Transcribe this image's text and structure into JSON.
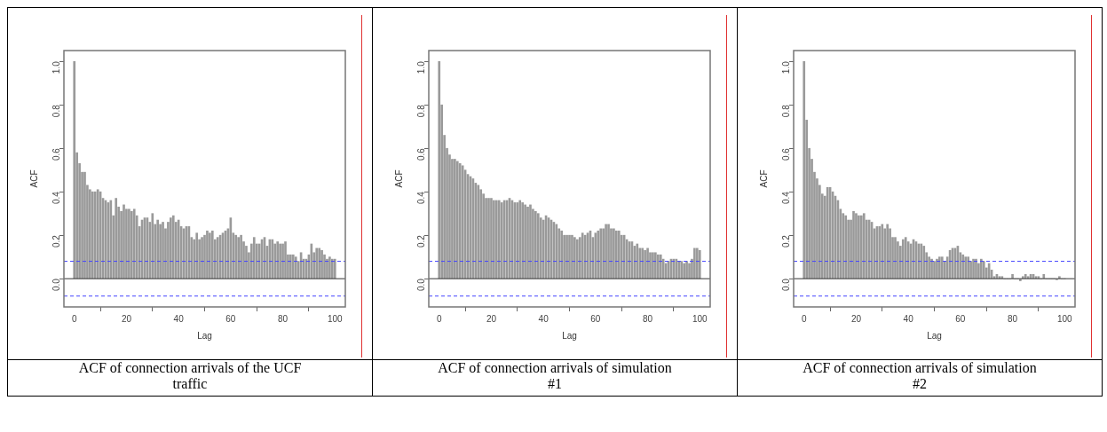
{
  "chart_data": [
    {
      "type": "bar",
      "title": "ACF of connection arrivals of the UCF traffic",
      "xlabel": "Lag",
      "ylabel": "ACF",
      "color": "#9a9a9a",
      "x": [
        0,
        1,
        2,
        3,
        4,
        5,
        6,
        7,
        8,
        9,
        10,
        11,
        12,
        13,
        14,
        15,
        16,
        17,
        18,
        19,
        20,
        21,
        22,
        23,
        24,
        25,
        26,
        27,
        28,
        29,
        30,
        31,
        32,
        33,
        34,
        35,
        36,
        37,
        38,
        39,
        40,
        41,
        42,
        43,
        44,
        45,
        46,
        47,
        48,
        49,
        50,
        51,
        52,
        53,
        54,
        55,
        56,
        57,
        58,
        59,
        60,
        61,
        62,
        63,
        64,
        65,
        66,
        67,
        68,
        69,
        70,
        71,
        72,
        73,
        74,
        75,
        76,
        77,
        78,
        79,
        80,
        81,
        82,
        83,
        84,
        85,
        86,
        87,
        88,
        89,
        90,
        91,
        92,
        93,
        94,
        95,
        96,
        97,
        98,
        99,
        100
      ],
      "values": [
        1.0,
        0.58,
        0.53,
        0.49,
        0.49,
        0.43,
        0.41,
        0.4,
        0.4,
        0.41,
        0.4,
        0.37,
        0.36,
        0.35,
        0.36,
        0.29,
        0.37,
        0.33,
        0.31,
        0.34,
        0.32,
        0.32,
        0.31,
        0.32,
        0.29,
        0.24,
        0.27,
        0.28,
        0.28,
        0.26,
        0.3,
        0.25,
        0.27,
        0.25,
        0.26,
        0.23,
        0.26,
        0.28,
        0.29,
        0.26,
        0.27,
        0.24,
        0.23,
        0.24,
        0.24,
        0.19,
        0.18,
        0.21,
        0.18,
        0.19,
        0.2,
        0.22,
        0.21,
        0.22,
        0.18,
        0.19,
        0.2,
        0.21,
        0.22,
        0.23,
        0.28,
        0.21,
        0.2,
        0.19,
        0.2,
        0.17,
        0.15,
        0.12,
        0.16,
        0.19,
        0.16,
        0.16,
        0.18,
        0.19,
        0.15,
        0.18,
        0.18,
        0.16,
        0.17,
        0.16,
        0.16,
        0.17,
        0.11,
        0.11,
        0.11,
        0.1,
        0.08,
        0.12,
        0.09,
        0.09,
        0.11,
        0.16,
        0.12,
        0.14,
        0.14,
        0.13,
        0.11,
        0.09,
        0.1,
        0.09,
        0.09
      ],
      "xlim": [
        -4,
        104
      ],
      "xticks": [
        0,
        20,
        40,
        60,
        80,
        100
      ],
      "ylim": [
        -0.13,
        1.05
      ],
      "yticks": [
        {
          "value": 0,
          "label": "0.0"
        },
        {
          "value": 0.2,
          "label": "0.2"
        },
        {
          "value": 0.4,
          "label": "0.4"
        },
        {
          "value": 0.6,
          "label": "0.6"
        },
        {
          "value": 0.8,
          "label": "0.8"
        },
        {
          "value": 1,
          "label": "1.0"
        }
      ],
      "ref_lines": [
        {
          "axis": "y",
          "value": 0,
          "color": "#333333",
          "line_style": "solid"
        },
        {
          "axis": "y",
          "value": 0.08,
          "color": "#4444ff",
          "line_style": "dashed"
        },
        {
          "axis": "y",
          "value": -0.08,
          "color": "#4444ff",
          "line_style": "dashed"
        }
      ]
    },
    {
      "type": "bar",
      "title": "ACF of connection arrivals of simulation #1",
      "xlabel": "Lag",
      "ylabel": "ACF",
      "color": "#9a9a9a",
      "x": [
        0,
        1,
        2,
        3,
        4,
        5,
        6,
        7,
        8,
        9,
        10,
        11,
        12,
        13,
        14,
        15,
        16,
        17,
        18,
        19,
        20,
        21,
        22,
        23,
        24,
        25,
        26,
        27,
        28,
        29,
        30,
        31,
        32,
        33,
        34,
        35,
        36,
        37,
        38,
        39,
        40,
        41,
        42,
        43,
        44,
        45,
        46,
        47,
        48,
        49,
        50,
        51,
        52,
        53,
        54,
        55,
        56,
        57,
        58,
        59,
        60,
        61,
        62,
        63,
        64,
        65,
        66,
        67,
        68,
        69,
        70,
        71,
        72,
        73,
        74,
        75,
        76,
        77,
        78,
        79,
        80,
        81,
        82,
        83,
        84,
        85,
        86,
        87,
        88,
        89,
        90,
        91,
        92,
        93,
        94,
        95,
        96,
        97,
        98,
        99,
        100
      ],
      "values": [
        1.0,
        0.8,
        0.66,
        0.6,
        0.57,
        0.55,
        0.55,
        0.54,
        0.53,
        0.52,
        0.5,
        0.48,
        0.47,
        0.46,
        0.44,
        0.43,
        0.41,
        0.39,
        0.37,
        0.37,
        0.37,
        0.36,
        0.36,
        0.36,
        0.35,
        0.36,
        0.36,
        0.37,
        0.36,
        0.35,
        0.35,
        0.36,
        0.35,
        0.34,
        0.33,
        0.34,
        0.32,
        0.31,
        0.3,
        0.28,
        0.27,
        0.29,
        0.28,
        0.27,
        0.26,
        0.25,
        0.23,
        0.22,
        0.2,
        0.2,
        0.2,
        0.2,
        0.19,
        0.18,
        0.19,
        0.21,
        0.2,
        0.21,
        0.22,
        0.19,
        0.21,
        0.22,
        0.23,
        0.23,
        0.25,
        0.25,
        0.23,
        0.23,
        0.22,
        0.22,
        0.2,
        0.2,
        0.18,
        0.17,
        0.17,
        0.15,
        0.16,
        0.14,
        0.14,
        0.13,
        0.14,
        0.12,
        0.12,
        0.12,
        0.11,
        0.11,
        0.09,
        0.07,
        0.08,
        0.09,
        0.09,
        0.09,
        0.08,
        0.08,
        0.07,
        0.08,
        0.07,
        0.09,
        0.14,
        0.14,
        0.13
      ],
      "xlim": [
        -4,
        104
      ],
      "xticks": [
        0,
        20,
        40,
        60,
        80,
        100
      ],
      "ylim": [
        -0.13,
        1.05
      ],
      "yticks": [
        {
          "value": 0,
          "label": "0.0"
        },
        {
          "value": 0.2,
          "label": "0.2"
        },
        {
          "value": 0.4,
          "label": "0.4"
        },
        {
          "value": 0.6,
          "label": "0.6"
        },
        {
          "value": 0.8,
          "label": "0.8"
        },
        {
          "value": 1,
          "label": "1.0"
        }
      ],
      "ref_lines": [
        {
          "axis": "y",
          "value": 0,
          "color": "#333333",
          "line_style": "solid"
        },
        {
          "axis": "y",
          "value": 0.08,
          "color": "#4444ff",
          "line_style": "dashed"
        },
        {
          "axis": "y",
          "value": -0.08,
          "color": "#4444ff",
          "line_style": "dashed"
        }
      ]
    },
    {
      "type": "bar",
      "title": "ACF of connection arrivals of simulation #2",
      "xlabel": "Lag",
      "ylabel": "ACF",
      "color": "#9a9a9a",
      "x": [
        0,
        1,
        2,
        3,
        4,
        5,
        6,
        7,
        8,
        9,
        10,
        11,
        12,
        13,
        14,
        15,
        16,
        17,
        18,
        19,
        20,
        21,
        22,
        23,
        24,
        25,
        26,
        27,
        28,
        29,
        30,
        31,
        32,
        33,
        34,
        35,
        36,
        37,
        38,
        39,
        40,
        41,
        42,
        43,
        44,
        45,
        46,
        47,
        48,
        49,
        50,
        51,
        52,
        53,
        54,
        55,
        56,
        57,
        58,
        59,
        60,
        61,
        62,
        63,
        64,
        65,
        66,
        67,
        68,
        69,
        70,
        71,
        72,
        73,
        74,
        75,
        76,
        77,
        78,
        79,
        80,
        81,
        82,
        83,
        84,
        85,
        86,
        87,
        88,
        89,
        90,
        91,
        92,
        93,
        94,
        95,
        96,
        97,
        98,
        99,
        100
      ],
      "values": [
        1.0,
        0.73,
        0.6,
        0.55,
        0.49,
        0.46,
        0.43,
        0.39,
        0.38,
        0.42,
        0.42,
        0.4,
        0.38,
        0.36,
        0.32,
        0.3,
        0.29,
        0.27,
        0.27,
        0.31,
        0.3,
        0.29,
        0.29,
        0.3,
        0.27,
        0.27,
        0.26,
        0.23,
        0.24,
        0.24,
        0.25,
        0.23,
        0.25,
        0.23,
        0.19,
        0.19,
        0.17,
        0.15,
        0.18,
        0.19,
        0.17,
        0.16,
        0.18,
        0.17,
        0.16,
        0.16,
        0.15,
        0.12,
        0.1,
        0.09,
        0.08,
        0.09,
        0.1,
        0.1,
        0.08,
        0.1,
        0.13,
        0.14,
        0.14,
        0.15,
        0.12,
        0.11,
        0.1,
        0.1,
        0.08,
        0.09,
        0.09,
        0.07,
        0.09,
        0.08,
        0.05,
        0.07,
        0.04,
        0.01,
        0.02,
        0.01,
        0.01,
        0.0,
        0.0,
        0.0,
        0.02,
        0.0,
        0.0,
        -0.01,
        0.01,
        0.02,
        0.01,
        0.02,
        0.02,
        0.01,
        0.01,
        0.0,
        0.02,
        0.0,
        0.0,
        0.0,
        0.0,
        -0.005,
        0.01,
        0.0,
        0.0
      ],
      "xlim": [
        -4,
        104
      ],
      "xticks": [
        0,
        20,
        40,
        60,
        80,
        100
      ],
      "ylim": [
        -0.13,
        1.05
      ],
      "yticks": [
        {
          "value": 0,
          "label": "0.0"
        },
        {
          "value": 0.2,
          "label": "0.2"
        },
        {
          "value": 0.4,
          "label": "0.4"
        },
        {
          "value": 0.6,
          "label": "0.6"
        },
        {
          "value": 0.8,
          "label": "0.8"
        },
        {
          "value": 1,
          "label": "1.0"
        }
      ],
      "ref_lines": [
        {
          "axis": "y",
          "value": 0,
          "color": "#333333",
          "line_style": "solid"
        },
        {
          "axis": "y",
          "value": 0.08,
          "color": "#4444ff",
          "line_style": "dashed"
        },
        {
          "axis": "y",
          "value": -0.08,
          "color": "#4444ff",
          "line_style": "dashed"
        }
      ]
    }
  ]
}
